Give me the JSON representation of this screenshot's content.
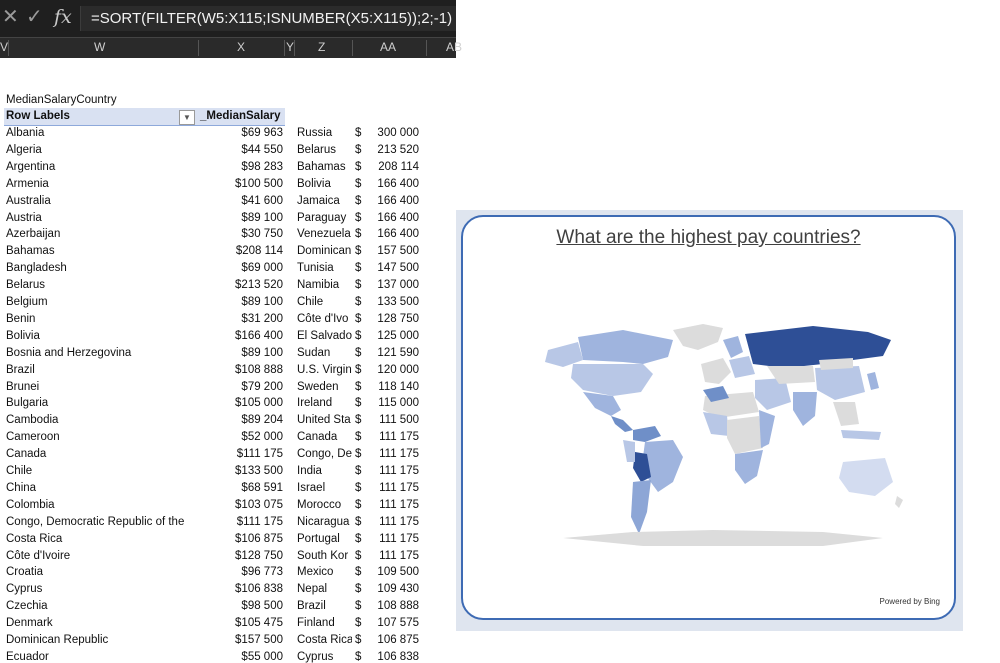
{
  "formula_bar": {
    "formula": "=SORT(FILTER(W5:X115;ISNUMBER(X5:X115));2;-1)",
    "fx_label": "fx"
  },
  "column_headers": {
    "v": "V",
    "w": "W",
    "x": "X",
    "y": "Y",
    "z": "Z",
    "aa": "AA",
    "ab": "AB"
  },
  "pivot": {
    "name": "MedianSalaryCountry",
    "row_labels_header": "Row Labels",
    "value_header": "_MedianSalary",
    "rows": [
      [
        "Albania",
        "$69 963"
      ],
      [
        "Algeria",
        "$44 550"
      ],
      [
        "Argentina",
        "$98 283"
      ],
      [
        "Armenia",
        "$100 500"
      ],
      [
        "Australia",
        "$41 600"
      ],
      [
        "Austria",
        "$89 100"
      ],
      [
        "Azerbaijan",
        "$30 750"
      ],
      [
        "Bahamas",
        "$208 114"
      ],
      [
        "Bangladesh",
        "$69 000"
      ],
      [
        "Belarus",
        "$213 520"
      ],
      [
        "Belgium",
        "$89 100"
      ],
      [
        "Benin",
        "$31 200"
      ],
      [
        "Bolivia",
        "$166 400"
      ],
      [
        "Bosnia and Herzegovina",
        "$89 100"
      ],
      [
        "Brazil",
        "$108 888"
      ],
      [
        "Brunei",
        "$79 200"
      ],
      [
        "Bulgaria",
        "$105 000"
      ],
      [
        "Cambodia",
        "$89 204"
      ],
      [
        "Cameroon",
        "$52 000"
      ],
      [
        "Canada",
        "$111 175"
      ],
      [
        "Chile",
        "$133 500"
      ],
      [
        "China",
        "$68 591"
      ],
      [
        "Colombia",
        "$103 075"
      ],
      [
        "Congo, Democratic Republic of the",
        "$111 175"
      ],
      [
        "Costa Rica",
        "$106 875"
      ],
      [
        "Côte d'Ivoire",
        "$128 750"
      ],
      [
        "Croatia",
        "$96 773"
      ],
      [
        "Cyprus",
        "$106 838"
      ],
      [
        "Czechia",
        "$98 500"
      ],
      [
        "Denmark",
        "$105 475"
      ],
      [
        "Dominican Republic",
        "$157 500"
      ],
      [
        "Ecuador",
        "$55 000"
      ]
    ]
  },
  "sorted": {
    "currency": "$",
    "rows": [
      [
        "Russia",
        "300 000"
      ],
      [
        "Belarus",
        "213 520"
      ],
      [
        "Bahamas",
        "208 114"
      ],
      [
        "Bolivia",
        "166 400"
      ],
      [
        "Jamaica",
        "166 400"
      ],
      [
        "Paraguay",
        "166 400"
      ],
      [
        "Venezuela",
        "166 400"
      ],
      [
        "Dominican",
        "157 500"
      ],
      [
        "Tunisia",
        "147 500"
      ],
      [
        "Namibia",
        "137 000"
      ],
      [
        "Chile",
        "133 500"
      ],
      [
        "Côte d'Ivo",
        "128 750"
      ],
      [
        "El Salvado",
        "125 000"
      ],
      [
        "Sudan",
        "121 590"
      ],
      [
        "U.S. Virgin",
        "120 000"
      ],
      [
        "Sweden",
        "118 140"
      ],
      [
        "Ireland",
        "115 000"
      ],
      [
        "United Sta",
        "111 500"
      ],
      [
        "Canada",
        "111 175"
      ],
      [
        "Congo, De",
        "111 175"
      ],
      [
        "India",
        "111 175"
      ],
      [
        "Israel",
        "111 175"
      ],
      [
        "Morocco",
        "111 175"
      ],
      [
        "Nicaragua",
        "111 175"
      ],
      [
        "Portugal",
        "111 175"
      ],
      [
        "South Kor",
        "111 175"
      ],
      [
        "Mexico",
        "109 500"
      ],
      [
        "Nepal",
        "109 430"
      ],
      [
        "Brazil",
        "108 888"
      ],
      [
        "Finland",
        "107 575"
      ],
      [
        "Costa Rica",
        "106 875"
      ],
      [
        "Cyprus",
        "106 838"
      ]
    ]
  },
  "map_chart": {
    "title": "What are the highest pay countries?",
    "attribution": "Powered by Bing",
    "colors": {
      "high": "#2e4f96",
      "mid": "#6f8fc8",
      "low": "#b8c7e6",
      "nodata": "#dcdcdc"
    }
  }
}
